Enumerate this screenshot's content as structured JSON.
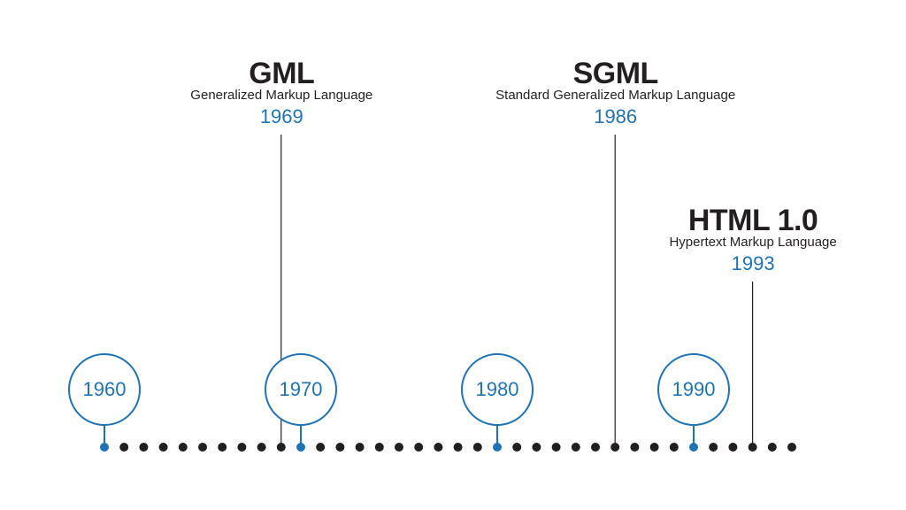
{
  "colors": {
    "accent": "#1e73b4",
    "ink": "#231f20",
    "background": "#ffffff"
  },
  "timeline": {
    "start_year": 1960,
    "end_year": 1995,
    "dot_step_years": 1,
    "decades": [
      {
        "label": "1960",
        "year": 1960
      },
      {
        "label": "1970",
        "year": 1970
      },
      {
        "label": "1980",
        "year": 1980
      },
      {
        "label": "1990",
        "year": 1990
      }
    ],
    "events": [
      {
        "key": "gml",
        "title": "GML",
        "subtitle": "Generalized Markup Language",
        "year_label": "1969",
        "year": 1969
      },
      {
        "key": "sgml",
        "title": "SGML",
        "subtitle": "Standard Generalized Markup Language",
        "year_label": "1986",
        "year": 1986
      },
      {
        "key": "html",
        "title": "HTML 1.0",
        "subtitle": "Hypertext Markup Language",
        "year_label": "1993",
        "year": 1993
      }
    ]
  }
}
